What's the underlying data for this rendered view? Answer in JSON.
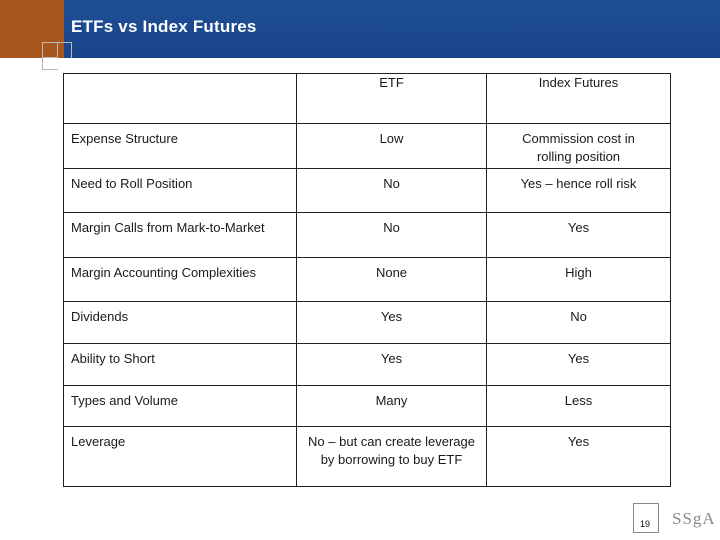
{
  "slide": {
    "title": "ETFs vs Index Futures",
    "page_number": "19",
    "logo_text": "SSgA"
  },
  "table": {
    "headers": [
      "",
      "ETF",
      "Index Futures"
    ],
    "rows": [
      [
        "Expense Structure",
        "Low",
        "Commission cost in rolling position"
      ],
      [
        "Need to Roll Position",
        "No",
        "Yes – hence roll risk"
      ],
      [
        "Margin Calls from Mark-to-Market",
        "No",
        "Yes"
      ],
      [
        "Margin Accounting Complexities",
        "None",
        "High"
      ],
      [
        "Dividends",
        "Yes",
        "No"
      ],
      [
        "Ability to Short",
        "Yes",
        "Yes"
      ],
      [
        "Types and Volume",
        "Many",
        "Less"
      ],
      [
        "Leverage",
        "No – but can create leverage by borrowing to buy ETF",
        "Yes"
      ]
    ]
  },
  "colors": {
    "title_bar": "#1f4f96",
    "title_accent": "#a8561b",
    "border": "#222222"
  }
}
